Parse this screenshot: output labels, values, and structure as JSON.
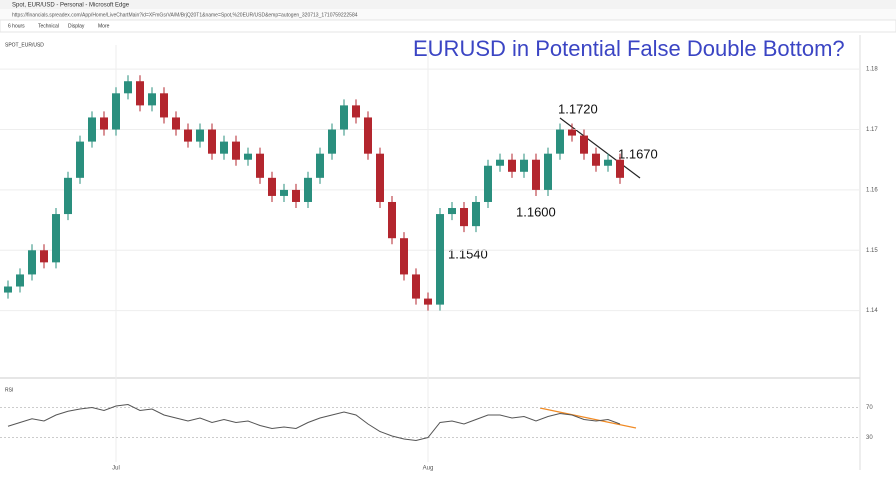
{
  "window": {
    "tab_title": "Spot, EUR/USD - Personal - Microsoft Edge",
    "url": "https://financials.spreadex.com/App/Home/LiveChartMain?id=XFmGsrVA/M/BrjQ20T1&name=Spot,%20EUR/USD&emp=autogen_320713_1710759222584",
    "toolbar": [
      "6 hours",
      "Technical",
      "Display",
      "More"
    ],
    "instrument": "SPOT_EUR/USD",
    "rsi_label": "RSI"
  },
  "chart_data": {
    "type": "candlestick",
    "title": "EURUSD in Potential False Double Bottom?",
    "annotations": [
      "1.1720",
      "1.1670",
      "1.1600",
      "1.1540"
    ],
    "categories": [
      null,
      null,
      null,
      null,
      null,
      null,
      null,
      null,
      null,
      "Jul",
      null,
      null,
      null,
      null,
      null,
      null,
      null,
      null,
      null,
      null,
      null,
      null,
      null,
      null,
      null,
      null,
      null,
      null,
      null,
      null,
      null,
      null,
      null,
      null,
      null,
      "Aug",
      null,
      null,
      null,
      null,
      null,
      null,
      null,
      null,
      null,
      null,
      null,
      null,
      null,
      null,
      null,
      null
    ],
    "open": [
      1.143,
      1.144,
      1.146,
      1.15,
      1.148,
      1.156,
      1.162,
      1.168,
      1.172,
      1.17,
      1.176,
      1.178,
      1.174,
      1.176,
      1.172,
      1.17,
      1.168,
      1.17,
      1.166,
      1.168,
      1.165,
      1.166,
      1.162,
      1.159,
      1.16,
      1.158,
      1.162,
      1.166,
      1.17,
      1.174,
      1.172,
      1.166,
      1.158,
      1.152,
      1.146,
      1.142,
      1.141,
      1.156,
      1.157,
      1.154,
      1.158,
      1.164,
      1.165,
      1.163,
      1.165,
      1.16,
      1.166,
      1.17,
      1.169,
      1.166,
      1.164,
      1.165
    ],
    "high": [
      1.145,
      1.147,
      1.151,
      1.151,
      1.157,
      1.163,
      1.169,
      1.173,
      1.173,
      1.177,
      1.179,
      1.179,
      1.177,
      1.177,
      1.173,
      1.171,
      1.171,
      1.171,
      1.169,
      1.169,
      1.167,
      1.167,
      1.163,
      1.161,
      1.161,
      1.163,
      1.167,
      1.171,
      1.175,
      1.175,
      1.173,
      1.167,
      1.159,
      1.153,
      1.147,
      1.143,
      1.157,
      1.158,
      1.158,
      1.159,
      1.165,
      1.166,
      1.166,
      1.166,
      1.166,
      1.167,
      1.171,
      1.171,
      1.17,
      1.167,
      1.166,
      1.166
    ],
    "low": [
      1.142,
      1.143,
      1.145,
      1.147,
      1.147,
      1.155,
      1.161,
      1.167,
      1.169,
      1.169,
      1.175,
      1.173,
      1.173,
      1.171,
      1.169,
      1.167,
      1.167,
      1.165,
      1.165,
      1.164,
      1.164,
      1.161,
      1.158,
      1.158,
      1.157,
      1.157,
      1.161,
      1.165,
      1.169,
      1.171,
      1.165,
      1.157,
      1.151,
      1.145,
      1.141,
      1.14,
      1.14,
      1.155,
      1.153,
      1.153,
      1.157,
      1.163,
      1.162,
      1.162,
      1.159,
      1.159,
      1.165,
      1.168,
      1.165,
      1.163,
      1.163,
      1.161
    ],
    "close": [
      1.144,
      1.146,
      1.15,
      1.148,
      1.156,
      1.162,
      1.168,
      1.172,
      1.17,
      1.176,
      1.178,
      1.174,
      1.176,
      1.172,
      1.17,
      1.168,
      1.17,
      1.166,
      1.168,
      1.165,
      1.166,
      1.162,
      1.159,
      1.16,
      1.158,
      1.162,
      1.166,
      1.17,
      1.174,
      1.172,
      1.166,
      1.158,
      1.152,
      1.146,
      1.142,
      1.141,
      1.156,
      1.157,
      1.154,
      1.158,
      1.164,
      1.165,
      1.163,
      1.165,
      1.16,
      1.166,
      1.17,
      1.169,
      1.166,
      1.164,
      1.165,
      1.162
    ],
    "up_color": "#2a8f7e",
    "down_color": "#b3262e",
    "ylim": [
      1.131,
      1.184
    ],
    "yticks": [
      1.14,
      1.15,
      1.16,
      1.17,
      1.18
    ],
    "grid": true,
    "rsi": {
      "values": [
        45,
        50,
        55,
        52,
        60,
        65,
        68,
        70,
        66,
        72,
        74,
        66,
        68,
        60,
        56,
        52,
        56,
        50,
        54,
        50,
        52,
        46,
        42,
        44,
        42,
        50,
        56,
        60,
        64,
        60,
        48,
        38,
        32,
        28,
        26,
        30,
        50,
        52,
        48,
        54,
        60,
        60,
        56,
        58,
        52,
        58,
        62,
        60,
        54,
        52,
        54,
        48
      ],
      "color": "#555555",
      "ylim": [
        0,
        100
      ],
      "yticks": [
        30,
        70
      ]
    }
  }
}
